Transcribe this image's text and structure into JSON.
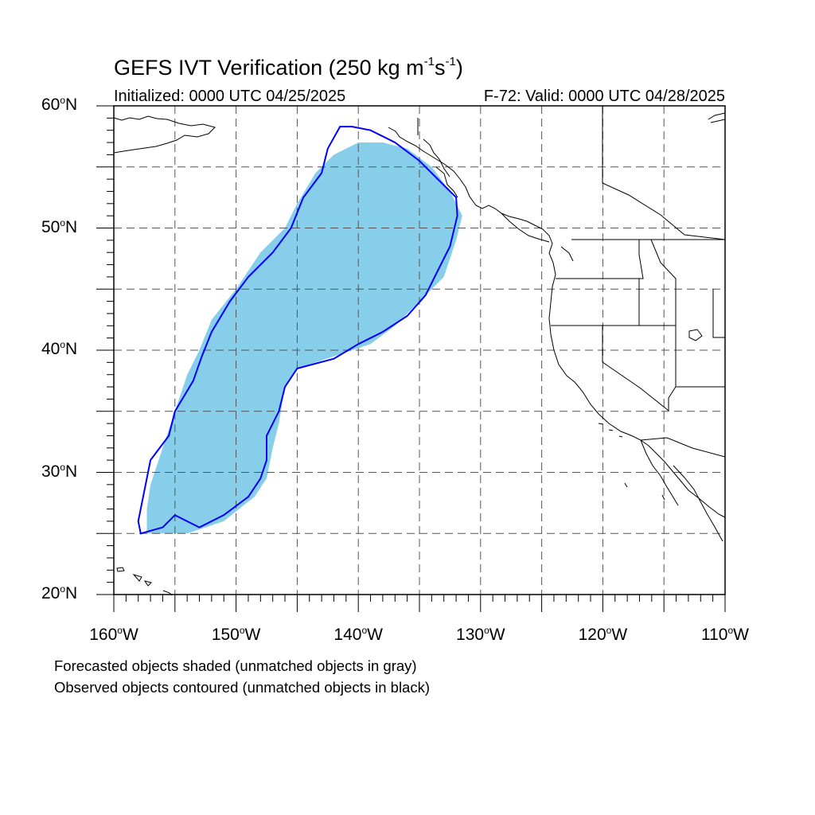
{
  "title": {
    "main": "GEFS IVT Verification (250 kg m",
    "exp1": "-1",
    "mid": "s",
    "exp2": "-1",
    "close": ")"
  },
  "init_label": "Initialized: 0000 UTC 04/25/2025",
  "valid_label": "F-72: Valid: 0000 UTC 04/28/2025",
  "degree_symbol": "o",
  "lat_labels": [
    {
      "num": "60",
      "hem": "N"
    },
    {
      "num": "50",
      "hem": "N"
    },
    {
      "num": "40",
      "hem": "N"
    },
    {
      "num": "30",
      "hem": "N"
    },
    {
      "num": "20",
      "hem": "N"
    }
  ],
  "lon_labels": [
    {
      "num": "160",
      "hem": "W"
    },
    {
      "num": "150",
      "hem": "W"
    },
    {
      "num": "140",
      "hem": "W"
    },
    {
      "num": "130",
      "hem": "W"
    },
    {
      "num": "120",
      "hem": "W"
    },
    {
      "num": "110",
      "hem": "W"
    }
  ],
  "footnote_1": "Forecasted objects shaded (unmatched objects in gray)",
  "footnote_2": "Observed objects contoured (unmatched objects in black)",
  "colors": {
    "forecast_fill": "#87CEEB",
    "observed_contour": "#0000FF",
    "grid": "#555555",
    "coastline": "#000000"
  },
  "map": {
    "lon_range": [
      -160,
      -110
    ],
    "lat_range": [
      20,
      60
    ],
    "grid_spacing_deg": 5,
    "grid_style": "dashed",
    "forecast_object_deg": [
      [
        -157.3,
        25
      ],
      [
        -154,
        25
      ],
      [
        -151,
        26
      ],
      [
        -148.5,
        28
      ],
      [
        -147.5,
        29.5
      ],
      [
        -147,
        32
      ],
      [
        -146.5,
        34
      ],
      [
        -146,
        37
      ],
      [
        -145,
        38.5
      ],
      [
        -142,
        39.5
      ],
      [
        -139,
        40.5
      ],
      [
        -137,
        42
      ],
      [
        -135,
        44
      ],
      [
        -133,
        46
      ],
      [
        -132,
        49
      ],
      [
        -131.5,
        51
      ],
      [
        -132.5,
        53
      ],
      [
        -134,
        55
      ],
      [
        -136,
        56.5
      ],
      [
        -138,
        57
      ],
      [
        -140,
        57
      ],
      [
        -142,
        56
      ],
      [
        -143.5,
        54.5
      ],
      [
        -145,
        52
      ],
      [
        -146,
        50
      ],
      [
        -148,
        48
      ],
      [
        -150,
        45
      ],
      [
        -152,
        42.5
      ],
      [
        -153,
        40
      ],
      [
        -154,
        38
      ],
      [
        -155,
        35
      ],
      [
        -156,
        32
      ],
      [
        -157,
        29
      ],
      [
        -157.3,
        27
      ]
    ],
    "observed_object_deg": [
      [
        -157.8,
        25
      ],
      [
        -156,
        25.5
      ],
      [
        -155,
        26.5
      ],
      [
        -153,
        25.5
      ],
      [
        -151,
        26.5
      ],
      [
        -149,
        28
      ],
      [
        -148,
        29.5
      ],
      [
        -147.5,
        31
      ],
      [
        -147.5,
        33
      ],
      [
        -146.5,
        35
      ],
      [
        -146,
        37
      ],
      [
        -145,
        38.5
      ],
      [
        -142,
        39.3
      ],
      [
        -140,
        40.5
      ],
      [
        -138,
        41.5
      ],
      [
        -136,
        42.8
      ],
      [
        -134.5,
        44.5
      ],
      [
        -133.5,
        46.5
      ],
      [
        -132.5,
        48.5
      ],
      [
        -131.9,
        51
      ],
      [
        -132,
        52.5
      ],
      [
        -133.5,
        54
      ],
      [
        -135,
        55.5
      ],
      [
        -137,
        57
      ],
      [
        -139,
        58
      ],
      [
        -140.5,
        58.3
      ],
      [
        -141.5,
        58.3
      ],
      [
        -142.5,
        56.5
      ],
      [
        -143,
        54.5
      ],
      [
        -144.5,
        52.5
      ],
      [
        -145.5,
        50
      ],
      [
        -147,
        48
      ],
      [
        -149,
        46
      ],
      [
        -150.5,
        44
      ],
      [
        -152,
        41.5
      ],
      [
        -152.8,
        39.5
      ],
      [
        -153.5,
        37.5
      ],
      [
        -155,
        35
      ],
      [
        -155.5,
        33
      ],
      [
        -157,
        31
      ],
      [
        -157.5,
        28.5
      ],
      [
        -158,
        26
      ]
    ]
  }
}
